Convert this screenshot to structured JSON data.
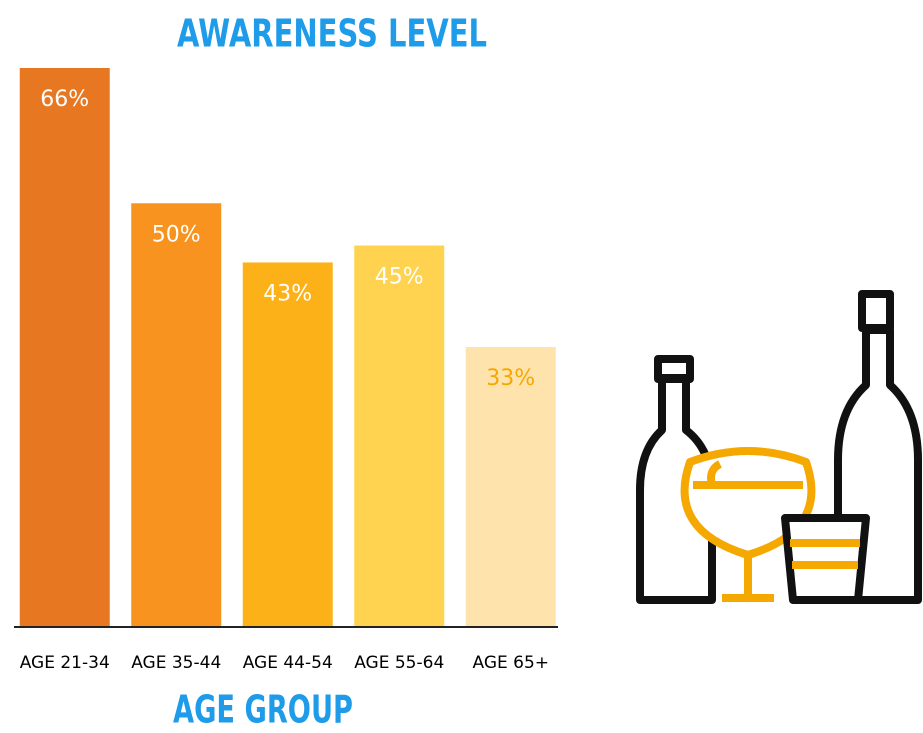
{
  "chart_data": {
    "type": "bar",
    "title": "AWARENESS LEVEL",
    "x_label": "AGE GROUP",
    "categories": [
      "AGE 21-34",
      "AGE 35-44",
      "AGE 44-54",
      "AGE 55-64",
      "AGE 65+"
    ],
    "values": [
      66,
      50,
      43,
      45,
      33
    ],
    "value_labels": [
      "66%",
      "50%",
      "43%",
      "45%",
      "33%"
    ],
    "colors": [
      "#e87722",
      "#f7931e",
      "#fbb117",
      "#ffd24f",
      "#ffe3ad"
    ],
    "label_colors": [
      "#ffffff",
      "#ffffff",
      "#ffffff",
      "#ffffff",
      "#f5a800"
    ]
  }
}
